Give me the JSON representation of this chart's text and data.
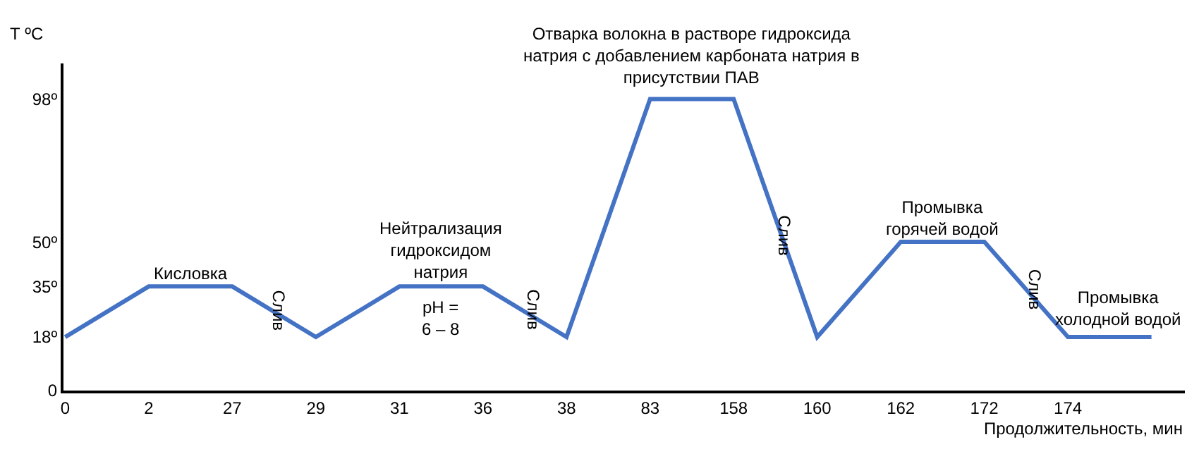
{
  "chart_data": {
    "type": "line",
    "xlabel": "Продолжительность, мин",
    "ylabel": "Т ºС",
    "categories": [
      "0",
      "2",
      "27",
      "29",
      "31",
      "36",
      "38",
      "83",
      "158",
      "160",
      "162",
      "172",
      "174",
      null
    ],
    "series": [
      {
        "color": "#4472c4",
        "values": [
          18,
          35,
          35,
          18,
          35,
          35,
          18,
          98,
          98,
          18,
          50,
          50,
          18,
          18
        ]
      }
    ],
    "ylim": [
      0,
      110
    ],
    "yticks": [
      {
        "value": 0,
        "label": "0"
      },
      {
        "value": 18,
        "label": "18º"
      },
      {
        "value": 35,
        "label": "35º"
      },
      {
        "value": 50,
        "label": "50º"
      },
      {
        "value": 98,
        "label": "98º"
      }
    ],
    "annotations": [
      "Кисловка",
      "Слив",
      "Нейтрализация гидроксидом натрия",
      "pH = 6 – 8",
      "Слив",
      "Отварка волокна в растворе гидроксида натрия с добавлением карбоната натрия в присутствии ПАВ",
      "Слив",
      "Промывка горячей водой",
      "Слив",
      "Промывка холодной водой"
    ],
    "grid": false,
    "legend": false,
    "marker": "none",
    "line_style": "solid"
  }
}
